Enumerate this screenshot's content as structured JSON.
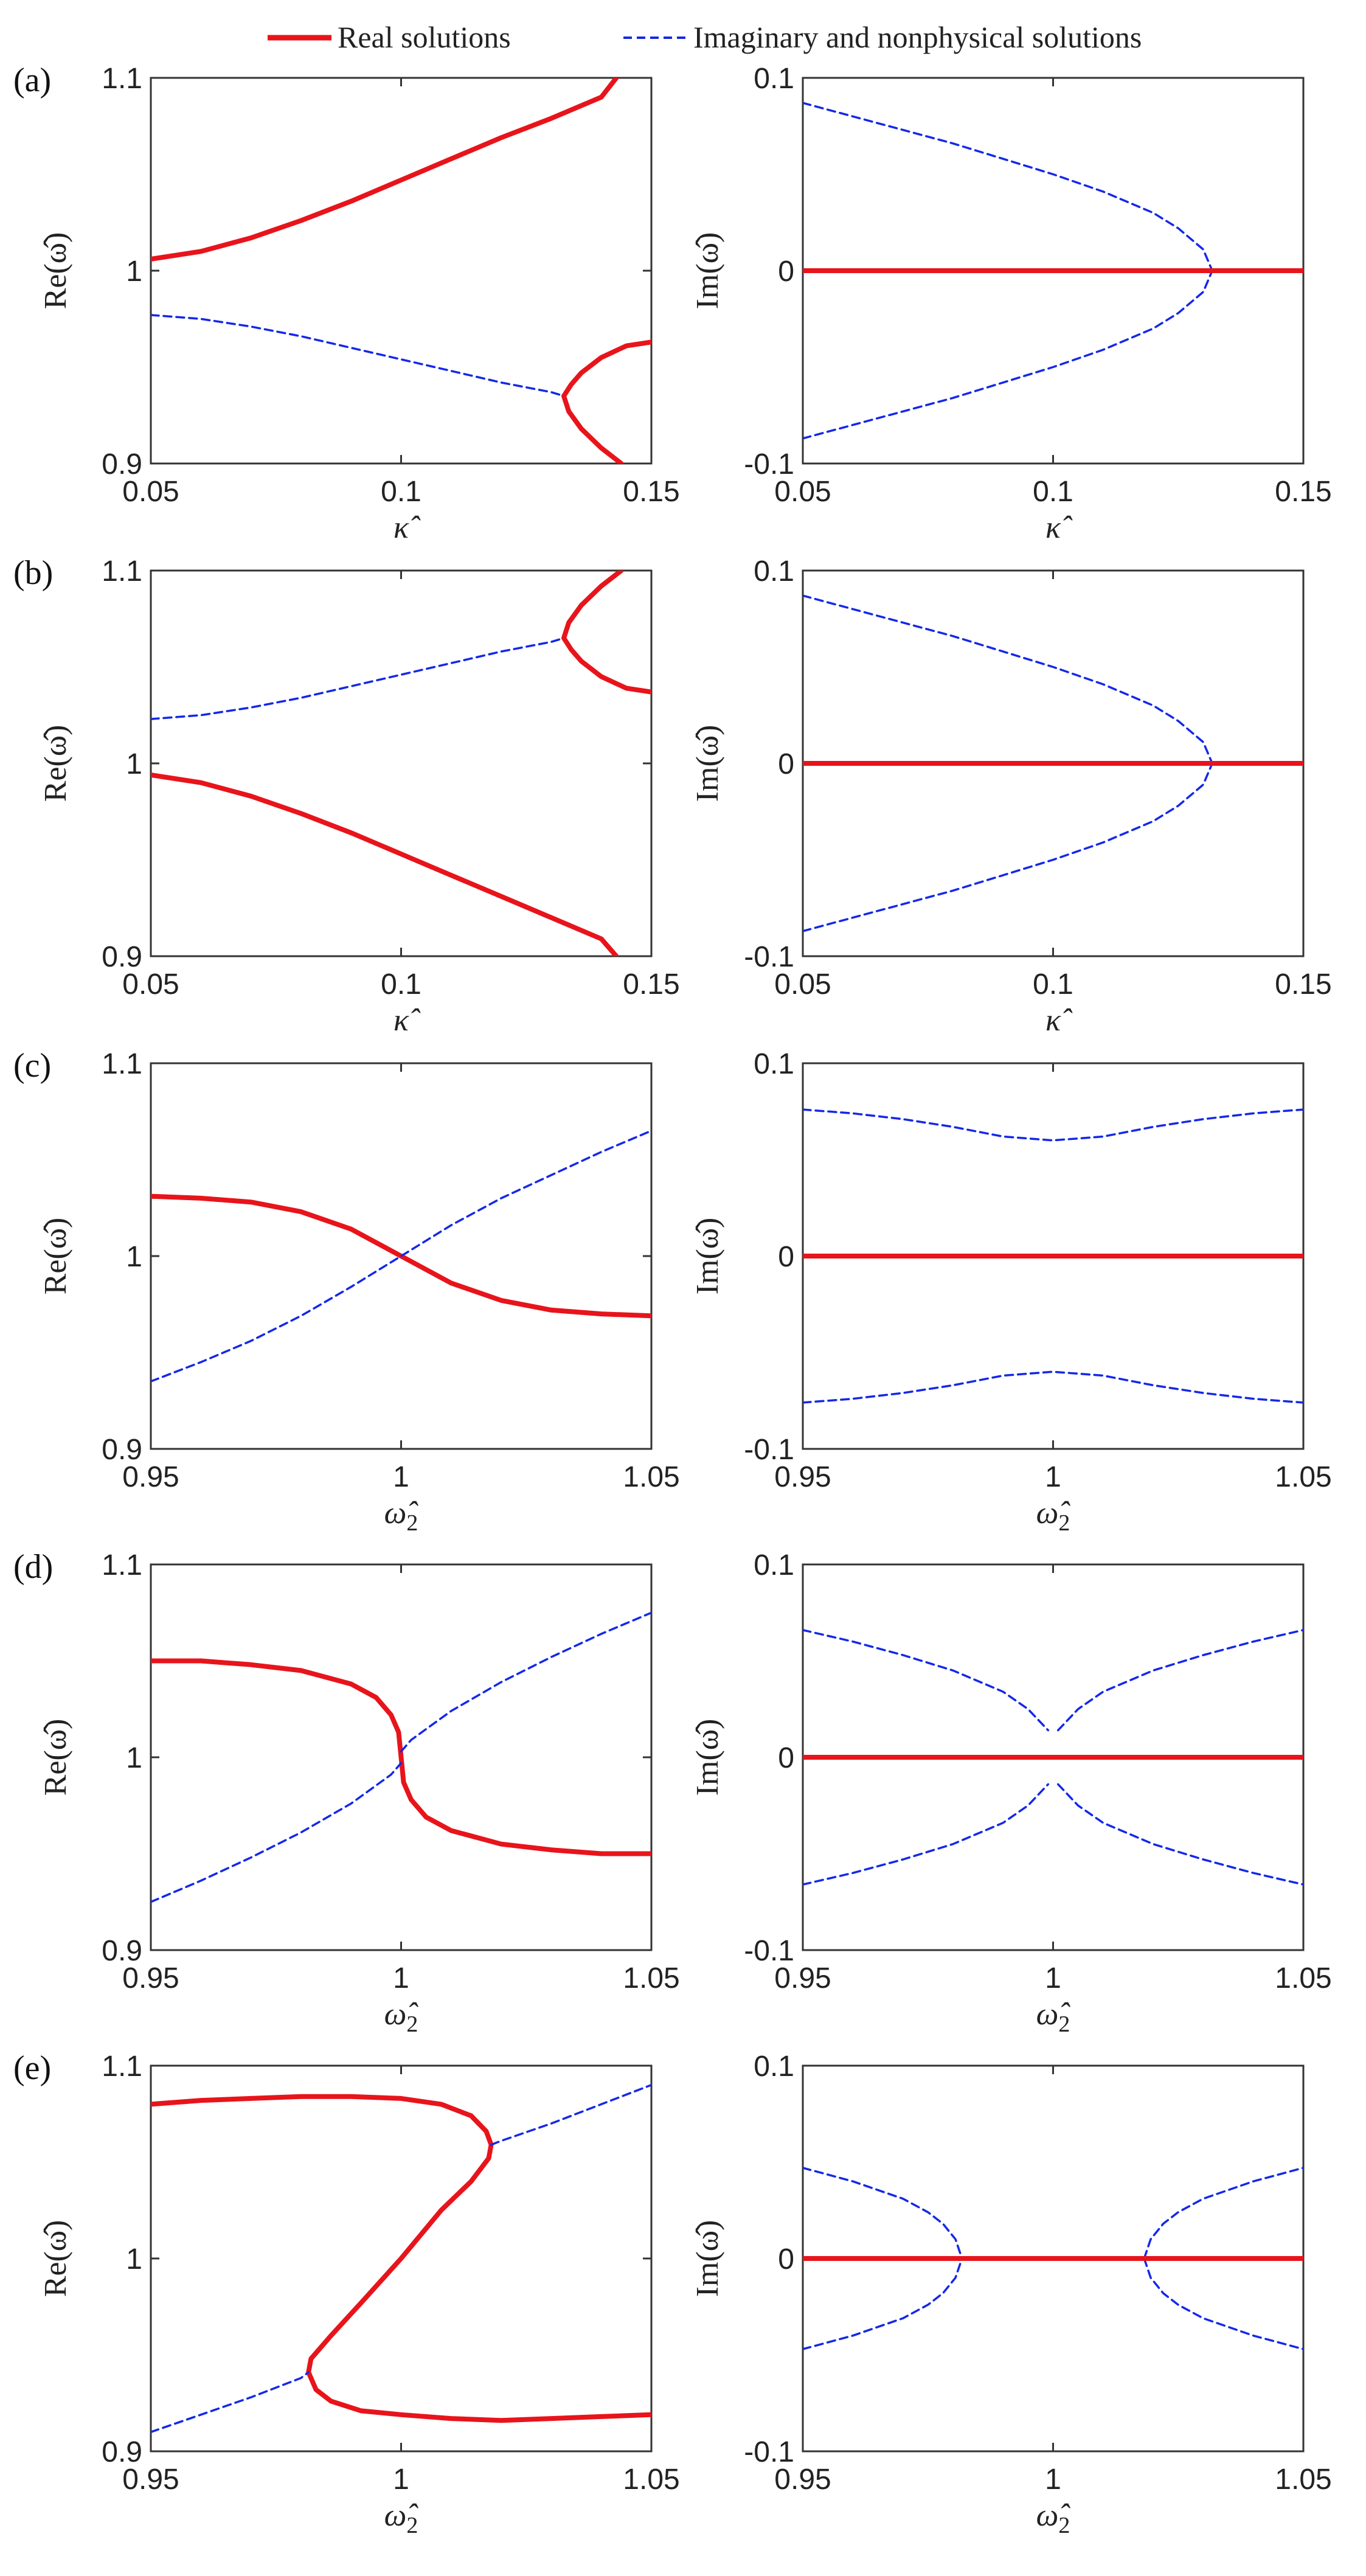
{
  "legend": {
    "real_label": "Real solutions",
    "imag_label": "Imaginary and nonphysical solutions"
  },
  "colors": {
    "real": "#e8141b",
    "imag": "#1428e8"
  },
  "axis_labels": {
    "re": "Re(ω̂)",
    "im": "Im(ω̂)",
    "kappa": "κ̂",
    "omega2": "ω̂",
    "omega2_sub": "2"
  },
  "chart_data": [
    {
      "id": "a-re",
      "panel_label": "(a)",
      "type": "line",
      "xlabel": "kappa",
      "ylabel": "re",
      "xlim": [
        0.05,
        0.15
      ],
      "ylim": [
        0.9,
        1.1
      ],
      "xticks": [
        "0.05",
        "0.1",
        "0.15"
      ],
      "yticks": [
        "0.9",
        "1",
        "1.1"
      ],
      "series": [
        {
          "kind": "real",
          "x": [
            0.05,
            0.06,
            0.07,
            0.08,
            0.09,
            0.1,
            0.11,
            0.12,
            0.13,
            0.14,
            0.143
          ],
          "y": [
            1.006,
            1.01,
            1.017,
            1.026,
            1.036,
            1.047,
            1.058,
            1.069,
            1.079,
            1.09,
            1.1
          ]
        },
        {
          "kind": "imag",
          "x": [
            0.05,
            0.06,
            0.07,
            0.08,
            0.09,
            0.1,
            0.11,
            0.12,
            0.13,
            0.1325
          ],
          "y": [
            0.977,
            0.975,
            0.971,
            0.966,
            0.96,
            0.954,
            0.948,
            0.942,
            0.937,
            0.935
          ]
        },
        {
          "kind": "real",
          "x": [
            0.15,
            0.145,
            0.14,
            0.136,
            0.134,
            0.1325,
            0.1335,
            0.136,
            0.14,
            0.144
          ],
          "y": [
            0.963,
            0.961,
            0.955,
            0.947,
            0.941,
            0.935,
            0.927,
            0.918,
            0.908,
            0.9
          ]
        }
      ]
    },
    {
      "id": "a-im",
      "panel_label": "",
      "type": "line",
      "xlabel": "kappa",
      "ylabel": "im",
      "xlim": [
        0.05,
        0.15
      ],
      "ylim": [
        -0.1,
        0.1
      ],
      "xticks": [
        "0.05",
        "0.1",
        "0.15"
      ],
      "yticks": [
        "-0.1",
        "0",
        "0.1"
      ],
      "series": [
        {
          "kind": "imag",
          "x": [
            0.05,
            0.06,
            0.07,
            0.08,
            0.09,
            0.1,
            0.11,
            0.12,
            0.125,
            0.13,
            0.1318
          ],
          "y": [
            0.087,
            0.08,
            0.073,
            0.066,
            0.058,
            0.05,
            0.041,
            0.03,
            0.022,
            0.011,
            0.0
          ]
        },
        {
          "kind": "imag",
          "x": [
            0.05,
            0.06,
            0.07,
            0.08,
            0.09,
            0.1,
            0.11,
            0.12,
            0.125,
            0.13,
            0.1318
          ],
          "y": [
            -0.087,
            -0.08,
            -0.073,
            -0.066,
            -0.058,
            -0.05,
            -0.041,
            -0.03,
            -0.022,
            -0.011,
            0.0
          ]
        },
        {
          "kind": "real",
          "x": [
            0.05,
            0.15
          ],
          "y": [
            0.0,
            0.0
          ]
        }
      ]
    },
    {
      "id": "b-re",
      "panel_label": "(b)",
      "type": "line",
      "xlabel": "kappa",
      "ylabel": "re",
      "xlim": [
        0.05,
        0.15
      ],
      "ylim": [
        0.9,
        1.1
      ],
      "xticks": [
        "0.05",
        "0.1",
        "0.15"
      ],
      "yticks": [
        "0.9",
        "1",
        "1.1"
      ],
      "series": [
        {
          "kind": "real",
          "x": [
            0.05,
            0.06,
            0.07,
            0.08,
            0.09,
            0.1,
            0.11,
            0.12,
            0.13,
            0.14,
            0.143
          ],
          "y": [
            0.994,
            0.99,
            0.983,
            0.974,
            0.964,
            0.953,
            0.942,
            0.931,
            0.92,
            0.909,
            0.9
          ]
        },
        {
          "kind": "imag",
          "x": [
            0.05,
            0.06,
            0.07,
            0.08,
            0.09,
            0.1,
            0.11,
            0.12,
            0.13,
            0.1325
          ],
          "y": [
            1.023,
            1.025,
            1.029,
            1.034,
            1.04,
            1.046,
            1.052,
            1.058,
            1.063,
            1.065
          ]
        },
        {
          "kind": "real",
          "x": [
            0.144,
            0.14,
            0.136,
            0.1335,
            0.1325,
            0.134,
            0.136,
            0.14,
            0.145,
            0.15
          ],
          "y": [
            1.1,
            1.092,
            1.082,
            1.073,
            1.065,
            1.059,
            1.053,
            1.045,
            1.039,
            1.037
          ]
        }
      ]
    },
    {
      "id": "b-im",
      "panel_label": "",
      "type": "line",
      "xlabel": "kappa",
      "ylabel": "im",
      "xlim": [
        0.05,
        0.15
      ],
      "ylim": [
        -0.1,
        0.1
      ],
      "xticks": [
        "0.05",
        "0.1",
        "0.15"
      ],
      "yticks": [
        "-0.1",
        "0",
        "0.1"
      ],
      "series": [
        {
          "kind": "imag",
          "x": [
            0.05,
            0.06,
            0.07,
            0.08,
            0.09,
            0.1,
            0.11,
            0.12,
            0.125,
            0.13,
            0.1318
          ],
          "y": [
            0.087,
            0.08,
            0.073,
            0.066,
            0.058,
            0.05,
            0.041,
            0.03,
            0.022,
            0.011,
            0.0
          ]
        },
        {
          "kind": "imag",
          "x": [
            0.05,
            0.06,
            0.07,
            0.08,
            0.09,
            0.1,
            0.11,
            0.12,
            0.125,
            0.13,
            0.1318
          ],
          "y": [
            -0.087,
            -0.08,
            -0.073,
            -0.066,
            -0.058,
            -0.05,
            -0.041,
            -0.03,
            -0.022,
            -0.011,
            0.0
          ]
        },
        {
          "kind": "real",
          "x": [
            0.05,
            0.15
          ],
          "y": [
            0.0,
            0.0
          ]
        }
      ]
    },
    {
      "id": "c-re",
      "panel_label": "(c)",
      "type": "line",
      "xlabel": "omega2",
      "ylabel": "re",
      "xlim": [
        0.95,
        1.05
      ],
      "ylim": [
        0.9,
        1.1
      ],
      "xticks": [
        "0.95",
        "1",
        "1.05"
      ],
      "yticks": [
        "0.9",
        "1",
        "1.1"
      ],
      "series": [
        {
          "kind": "real",
          "x": [
            0.95,
            0.96,
            0.97,
            0.98,
            0.99,
            1.0,
            1.01,
            1.02,
            1.03,
            1.04,
            1.05
          ],
          "y": [
            1.031,
            1.03,
            1.028,
            1.023,
            1.014,
            1.0,
            0.986,
            0.977,
            0.972,
            0.97,
            0.969
          ]
        },
        {
          "kind": "imag",
          "x": [
            0.95,
            0.96,
            0.97,
            0.98,
            0.99,
            1.0,
            1.01,
            1.02,
            1.03,
            1.04,
            1.05
          ],
          "y": [
            0.935,
            0.945,
            0.956,
            0.969,
            0.984,
            1.0,
            1.016,
            1.03,
            1.042,
            1.054,
            1.065
          ]
        }
      ]
    },
    {
      "id": "c-im",
      "panel_label": "",
      "type": "line",
      "xlabel": "omega2",
      "ylabel": "im",
      "xlim": [
        0.95,
        1.05
      ],
      "ylim": [
        -0.1,
        0.1
      ],
      "xticks": [
        "0.95",
        "1",
        "1.05"
      ],
      "yticks": [
        "-0.1",
        "0",
        "0.1"
      ],
      "series": [
        {
          "kind": "imag",
          "x": [
            0.95,
            0.96,
            0.97,
            0.98,
            0.99,
            1.0,
            1.01,
            1.02,
            1.03,
            1.04,
            1.05
          ],
          "y": [
            0.076,
            0.074,
            0.071,
            0.067,
            0.062,
            0.06,
            0.062,
            0.067,
            0.071,
            0.074,
            0.076
          ]
        },
        {
          "kind": "imag",
          "x": [
            0.95,
            0.96,
            0.97,
            0.98,
            0.99,
            1.0,
            1.01,
            1.02,
            1.03,
            1.04,
            1.05
          ],
          "y": [
            -0.076,
            -0.074,
            -0.071,
            -0.067,
            -0.062,
            -0.06,
            -0.062,
            -0.067,
            -0.071,
            -0.074,
            -0.076
          ]
        },
        {
          "kind": "real",
          "x": [
            0.95,
            1.05
          ],
          "y": [
            0.0,
            0.0
          ]
        }
      ]
    },
    {
      "id": "d-re",
      "panel_label": "(d)",
      "type": "line",
      "xlabel": "omega2",
      "ylabel": "re",
      "xlim": [
        0.95,
        1.05
      ],
      "ylim": [
        0.9,
        1.1
      ],
      "xticks": [
        "0.95",
        "1",
        "1.05"
      ],
      "yticks": [
        "0.9",
        "1",
        "1.1"
      ],
      "series": [
        {
          "kind": "real",
          "x": [
            0.95,
            0.96,
            0.97,
            0.98,
            0.99,
            0.995,
            0.998,
            0.9995,
            1.0
          ],
          "y": [
            1.05,
            1.05,
            1.048,
            1.045,
            1.038,
            1.031,
            1.022,
            1.013,
            1.0
          ]
        },
        {
          "kind": "real",
          "x": [
            1.0,
            1.0005,
            1.002,
            1.005,
            1.01,
            1.02,
            1.03,
            1.04,
            1.05
          ],
          "y": [
            1.0,
            0.987,
            0.978,
            0.969,
            0.962,
            0.955,
            0.952,
            0.95,
            0.95
          ]
        },
        {
          "kind": "imag",
          "x": [
            0.95,
            0.96,
            0.97,
            0.98,
            0.99,
            0.998,
            1.0
          ],
          "y": [
            0.925,
            0.936,
            0.948,
            0.961,
            0.976,
            0.991,
            0.997
          ]
        },
        {
          "kind": "imag",
          "x": [
            1.0,
            1.002,
            1.01,
            1.02,
            1.03,
            1.04,
            1.05
          ],
          "y": [
            1.003,
            1.009,
            1.024,
            1.039,
            1.052,
            1.064,
            1.075
          ]
        }
      ]
    },
    {
      "id": "d-im",
      "panel_label": "",
      "type": "line",
      "xlabel": "omega2",
      "ylabel": "im",
      "xlim": [
        0.95,
        1.05
      ],
      "ylim": [
        -0.1,
        0.1
      ],
      "xticks": [
        "0.95",
        "1",
        "1.05"
      ],
      "yticks": [
        "-0.1",
        "0",
        "0.1"
      ],
      "series": [
        {
          "kind": "imag",
          "x": [
            0.95,
            0.96,
            0.97,
            0.98,
            0.99,
            0.995,
            0.999
          ],
          "y": [
            0.066,
            0.06,
            0.053,
            0.045,
            0.034,
            0.025,
            0.014
          ]
        },
        {
          "kind": "imag",
          "x": [
            1.001,
            1.005,
            1.01,
            1.02,
            1.03,
            1.04,
            1.05
          ],
          "y": [
            0.014,
            0.025,
            0.034,
            0.045,
            0.053,
            0.06,
            0.066
          ]
        },
        {
          "kind": "imag",
          "x": [
            0.95,
            0.96,
            0.97,
            0.98,
            0.99,
            0.995,
            0.999
          ],
          "y": [
            -0.066,
            -0.06,
            -0.053,
            -0.045,
            -0.034,
            -0.025,
            -0.014
          ]
        },
        {
          "kind": "imag",
          "x": [
            1.001,
            1.005,
            1.01,
            1.02,
            1.03,
            1.04,
            1.05
          ],
          "y": [
            -0.014,
            -0.025,
            -0.034,
            -0.045,
            -0.053,
            -0.06,
            -0.066
          ]
        },
        {
          "kind": "real",
          "x": [
            0.95,
            1.05
          ],
          "y": [
            0.0,
            0.0
          ]
        }
      ]
    },
    {
      "id": "e-re",
      "panel_label": "(e)",
      "type": "line",
      "xlabel": "omega2",
      "ylabel": "re",
      "xlim": [
        0.95,
        1.05
      ],
      "ylim": [
        0.9,
        1.1
      ],
      "xticks": [
        "0.95",
        "1",
        "1.05"
      ],
      "yticks": [
        "0.9",
        "1",
        "1.1"
      ],
      "series": [
        {
          "kind": "real",
          "x": [
            0.95,
            0.96,
            0.97,
            0.98,
            0.99,
            1.0,
            1.008,
            1.014,
            1.017,
            1.018,
            1.0175,
            1.014,
            1.008,
            1.0,
            0.992,
            0.986,
            0.982,
            0.9815,
            0.983,
            0.986,
            0.992,
            1.0,
            1.01,
            1.02,
            1.03,
            1.04,
            1.05
          ],
          "y": [
            1.08,
            1.082,
            1.083,
            1.084,
            1.084,
            1.083,
            1.08,
            1.074,
            1.066,
            1.059,
            1.052,
            1.04,
            1.025,
            1.0,
            0.977,
            0.96,
            0.948,
            0.941,
            0.932,
            0.926,
            0.921,
            0.919,
            0.917,
            0.916,
            0.917,
            0.918,
            0.919
          ]
        },
        {
          "kind": "imag",
          "x": [
            0.95,
            0.96,
            0.97,
            0.98,
            0.9815
          ],
          "y": [
            0.91,
            0.919,
            0.928,
            0.938,
            0.941
          ]
        },
        {
          "kind": "imag",
          "x": [
            1.018,
            1.02,
            1.03,
            1.04,
            1.05
          ],
          "y": [
            1.059,
            1.061,
            1.07,
            1.08,
            1.09
          ]
        }
      ]
    },
    {
      "id": "e-im",
      "panel_label": "",
      "type": "line",
      "xlabel": "omega2",
      "ylabel": "im",
      "xlim": [
        0.95,
        1.05
      ],
      "ylim": [
        -0.1,
        0.1
      ],
      "xticks": [
        "0.95",
        "1",
        "1.05"
      ],
      "yticks": [
        "-0.1",
        "0",
        "0.1"
      ],
      "series": [
        {
          "kind": "imag",
          "x": [
            0.95,
            0.96,
            0.97,
            0.975,
            0.978,
            0.9805,
            0.9818
          ],
          "y": [
            0.047,
            0.04,
            0.031,
            0.024,
            0.018,
            0.01,
            0.0
          ]
        },
        {
          "kind": "imag",
          "x": [
            0.95,
            0.96,
            0.97,
            0.975,
            0.978,
            0.9805,
            0.9818
          ],
          "y": [
            -0.047,
            -0.04,
            -0.031,
            -0.024,
            -0.018,
            -0.01,
            0.0
          ]
        },
        {
          "kind": "imag",
          "x": [
            1.0182,
            1.0195,
            1.022,
            1.025,
            1.03,
            1.04,
            1.05
          ],
          "y": [
            0.0,
            0.01,
            0.018,
            0.024,
            0.031,
            0.04,
            0.047
          ]
        },
        {
          "kind": "imag",
          "x": [
            1.0182,
            1.0195,
            1.022,
            1.025,
            1.03,
            1.04,
            1.05
          ],
          "y": [
            0.0,
            -0.01,
            -0.018,
            -0.024,
            -0.031,
            -0.04,
            -0.047
          ]
        },
        {
          "kind": "real",
          "x": [
            0.95,
            1.05
          ],
          "y": [
            0.0,
            0.0
          ]
        }
      ]
    }
  ]
}
